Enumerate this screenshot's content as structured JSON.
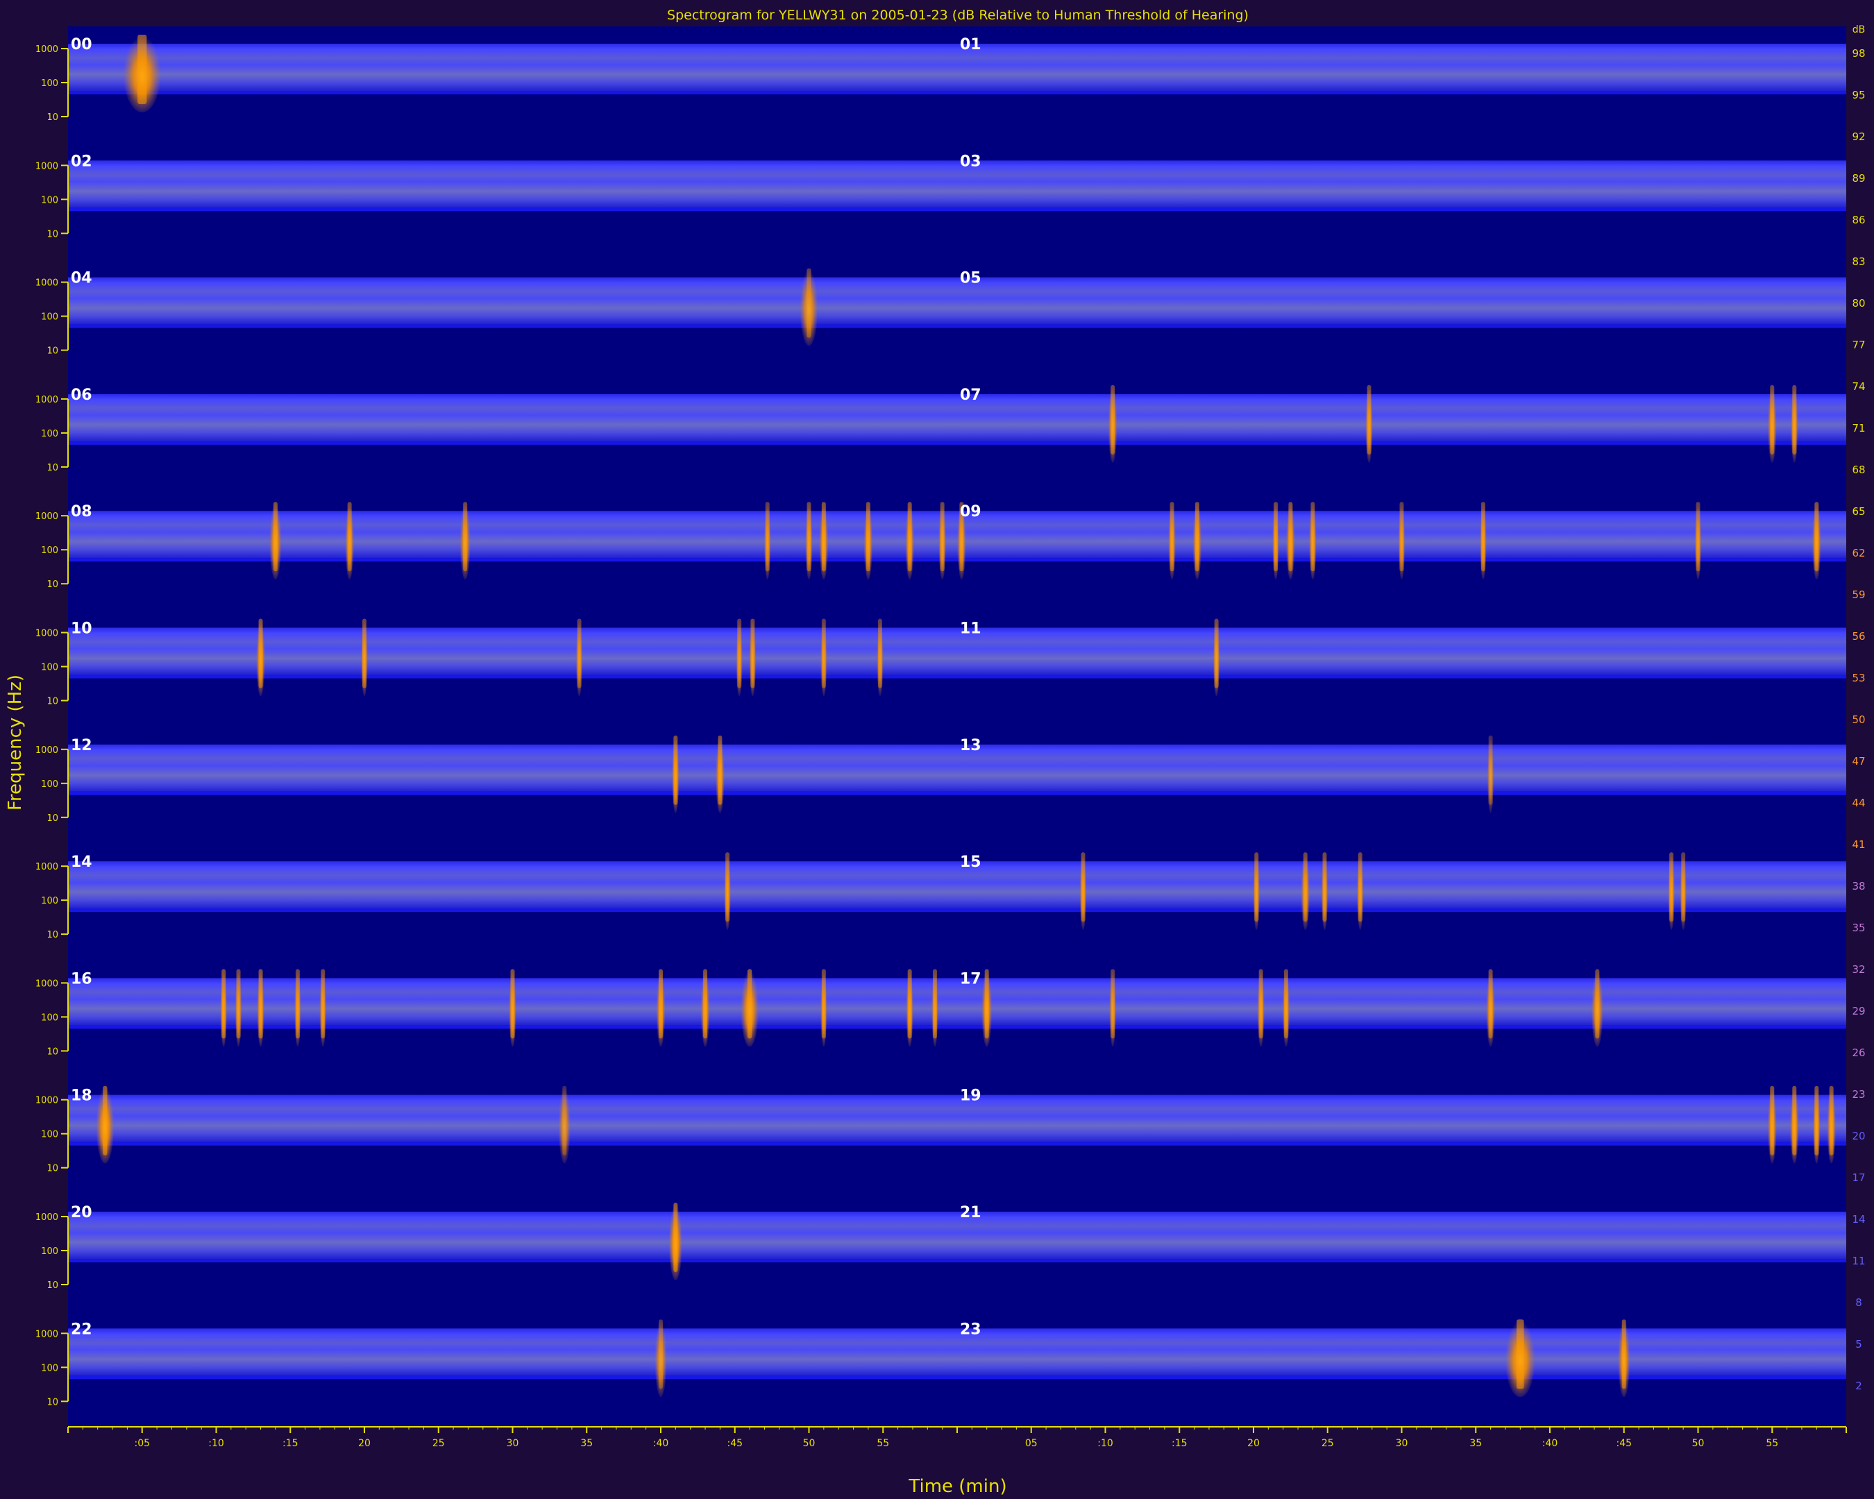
{
  "chart_data": {
    "type": "heatmap",
    "title": "Spectrogram for YELLWY31 on 2005-01-23 (dB Relative to Human Threshold of Hearing)",
    "xlabel": "Time (min)",
    "ylabel": "Frequency (Hz)",
    "row_labels": [
      "00",
      "01",
      "02",
      "03",
      "04",
      "05",
      "06",
      "07",
      "08",
      "09",
      "10",
      "11",
      "12",
      "13",
      "14",
      "15",
      "16",
      "17",
      "18",
      "19",
      "20",
      "21",
      "22",
      "23"
    ],
    "freq_ticks": [
      "1000",
      "100",
      "10"
    ],
    "time_ticks_first_half": [
      ":05",
      ":10",
      ":15",
      "20",
      "25",
      "30",
      "35",
      ":40",
      ":45",
      "50",
      "55"
    ],
    "time_ticks_second_half": [
      "05",
      ":10",
      ":15",
      "20",
      "25",
      "30",
      "35",
      ":40",
      ":45",
      "50",
      "55"
    ],
    "colorbar_ticks": [
      "98",
      "95",
      "92",
      "89",
      "86",
      "83",
      "80",
      "77",
      "74",
      "71",
      "68",
      "65",
      "62",
      "59",
      "56",
      "53",
      "50",
      "47",
      "44",
      "41",
      "38",
      "35",
      "32",
      "29",
      "26",
      "23",
      "20",
      "17",
      "14",
      "11",
      "8",
      "5",
      "2"
    ],
    "colorbar_top_label": "dB",
    "colors": {
      "background": "#1c0a3a",
      "plot_base": "#00007e",
      "band": "#3a3aff",
      "event": "#ff9a00",
      "axis": "#e8e000",
      "label": "#e8e000",
      "row_label": "#ffffff"
    },
    "events": [
      {
        "hour": 0,
        "minute": 5,
        "strength": 1.0,
        "width": 2.5
      },
      {
        "hour": 4,
        "minute": 50,
        "strength": 0.7,
        "width": 1.2
      },
      {
        "hour": 7,
        "minute": 10.5,
        "strength": 0.8,
        "width": 0.6
      },
      {
        "hour": 7,
        "minute": 27.8,
        "strength": 0.8,
        "width": 0.5
      },
      {
        "hour": 7,
        "minute": 55,
        "strength": 0.8,
        "width": 0.6
      },
      {
        "hour": 7,
        "minute": 56.5,
        "strength": 0.8,
        "width": 0.5
      },
      {
        "hour": 8,
        "minute": 14,
        "strength": 0.9,
        "width": 0.8
      },
      {
        "hour": 8,
        "minute": 19,
        "strength": 0.8,
        "width": 0.6
      },
      {
        "hour": 8,
        "minute": 26.8,
        "strength": 0.8,
        "width": 0.7
      },
      {
        "hour": 8,
        "minute": 47.2,
        "strength": 0.7,
        "width": 0.4
      },
      {
        "hour": 8,
        "minute": 50,
        "strength": 0.8,
        "width": 0.5
      },
      {
        "hour": 8,
        "minute": 51,
        "strength": 0.9,
        "width": 0.6
      },
      {
        "hour": 8,
        "minute": 54,
        "strength": 0.9,
        "width": 0.6
      },
      {
        "hour": 8,
        "minute": 56.8,
        "strength": 0.9,
        "width": 0.6
      },
      {
        "hour": 8,
        "minute": 59,
        "strength": 0.8,
        "width": 0.5
      },
      {
        "hour": 9,
        "minute": 0.3,
        "strength": 0.8,
        "width": 0.6
      },
      {
        "hour": 9,
        "minute": 14.5,
        "strength": 0.8,
        "width": 0.5
      },
      {
        "hour": 9,
        "minute": 16.2,
        "strength": 0.9,
        "width": 0.6
      },
      {
        "hour": 9,
        "minute": 21.5,
        "strength": 0.8,
        "width": 0.4
      },
      {
        "hour": 9,
        "minute": 22.5,
        "strength": 0.9,
        "width": 0.6
      },
      {
        "hour": 9,
        "minute": 24,
        "strength": 0.8,
        "width": 0.5
      },
      {
        "hour": 9,
        "minute": 30,
        "strength": 0.7,
        "width": 0.3
      },
      {
        "hour": 9,
        "minute": 35.5,
        "strength": 0.8,
        "width": 0.4
      },
      {
        "hour": 9,
        "minute": 50,
        "strength": 0.7,
        "width": 0.3
      },
      {
        "hour": 9,
        "minute": 58,
        "strength": 0.9,
        "width": 0.6
      },
      {
        "hour": 10,
        "minute": 13,
        "strength": 0.9,
        "width": 0.6
      },
      {
        "hour": 10,
        "minute": 20,
        "strength": 0.8,
        "width": 0.4
      },
      {
        "hour": 10,
        "minute": 34.5,
        "strength": 0.7,
        "width": 0.3
      },
      {
        "hour": 10,
        "minute": 45.3,
        "strength": 0.7,
        "width": 0.3
      },
      {
        "hour": 10,
        "minute": 46.2,
        "strength": 0.8,
        "width": 0.4
      },
      {
        "hour": 10,
        "minute": 51,
        "strength": 0.7,
        "width": 0.3
      },
      {
        "hour": 10,
        "minute": 54.8,
        "strength": 0.7,
        "width": 0.3
      },
      {
        "hour": 11,
        "minute": 17.5,
        "strength": 0.8,
        "width": 0.4
      },
      {
        "hour": 12,
        "minute": 41,
        "strength": 0.9,
        "width": 0.5
      },
      {
        "hour": 12,
        "minute": 44,
        "strength": 0.9,
        "width": 0.6
      },
      {
        "hour": 13,
        "minute": 36,
        "strength": 0.5,
        "width": 0.3
      },
      {
        "hour": 14,
        "minute": 44.5,
        "strength": 0.8,
        "width": 0.3
      },
      {
        "hour": 15,
        "minute": 8.5,
        "strength": 0.8,
        "width": 0.3
      },
      {
        "hour": 15,
        "minute": 20.2,
        "strength": 0.8,
        "width": 0.4
      },
      {
        "hour": 15,
        "minute": 23.5,
        "strength": 0.8,
        "width": 0.6
      },
      {
        "hour": 15,
        "minute": 24.8,
        "strength": 0.8,
        "width": 0.4
      },
      {
        "hour": 15,
        "minute": 27.2,
        "strength": 0.8,
        "width": 0.4
      },
      {
        "hour": 15,
        "minute": 48.2,
        "strength": 0.8,
        "width": 0.4
      },
      {
        "hour": 15,
        "minute": 49,
        "strength": 0.7,
        "width": 0.3
      },
      {
        "hour": 16,
        "minute": 10.5,
        "strength": 0.9,
        "width": 0.4
      },
      {
        "hour": 16,
        "minute": 11.5,
        "strength": 0.8,
        "width": 0.4
      },
      {
        "hour": 16,
        "minute": 13,
        "strength": 0.9,
        "width": 0.5
      },
      {
        "hour": 16,
        "minute": 15.5,
        "strength": 0.8,
        "width": 0.4
      },
      {
        "hour": 16,
        "minute": 17.2,
        "strength": 0.8,
        "width": 0.4
      },
      {
        "hour": 16,
        "minute": 30,
        "strength": 0.9,
        "width": 0.5
      },
      {
        "hour": 16,
        "minute": 40,
        "strength": 0.9,
        "width": 0.6
      },
      {
        "hour": 16,
        "minute": 43,
        "strength": 0.9,
        "width": 0.6
      },
      {
        "hour": 16,
        "minute": 46,
        "strength": 1.0,
        "width": 1.2
      },
      {
        "hour": 16,
        "minute": 51,
        "strength": 0.8,
        "width": 0.4
      },
      {
        "hour": 16,
        "minute": 56.8,
        "strength": 0.9,
        "width": 0.5
      },
      {
        "hour": 16,
        "minute": 58.5,
        "strength": 0.8,
        "width": 0.4
      },
      {
        "hour": 17,
        "minute": 2,
        "strength": 0.9,
        "width": 0.7
      },
      {
        "hour": 17,
        "minute": 10.5,
        "strength": 0.7,
        "width": 0.4
      },
      {
        "hour": 17,
        "minute": 20.5,
        "strength": 0.8,
        "width": 0.5
      },
      {
        "hour": 17,
        "minute": 22.2,
        "strength": 0.8,
        "width": 0.5
      },
      {
        "hour": 17,
        "minute": 36,
        "strength": 0.8,
        "width": 0.6
      },
      {
        "hour": 17,
        "minute": 43.2,
        "strength": 0.8,
        "width": 0.8
      },
      {
        "hour": 18,
        "minute": 2.5,
        "strength": 1.0,
        "width": 1.2
      },
      {
        "hour": 18,
        "minute": 33.5,
        "strength": 0.5,
        "width": 0.8
      },
      {
        "hour": 19,
        "minute": 59,
        "strength": 0.9,
        "width": 0.6
      },
      {
        "hour": 19,
        "minute": 55,
        "strength": 0.9,
        "width": 0.6
      },
      {
        "hour": 19,
        "minute": 56.5,
        "strength": 0.9,
        "width": 0.6
      },
      {
        "hour": 19,
        "minute": 58,
        "strength": 0.9,
        "width": 0.5
      },
      {
        "hour": 20,
        "minute": 41,
        "strength": 1.0,
        "width": 0.9
      },
      {
        "hour": 22,
        "minute": 40,
        "strength": 0.6,
        "width": 0.8
      },
      {
        "hour": 23,
        "minute": 38,
        "strength": 1.0,
        "width": 2.0
      },
      {
        "hour": 23,
        "minute": 45,
        "strength": 0.9,
        "width": 0.8
      }
    ]
  }
}
